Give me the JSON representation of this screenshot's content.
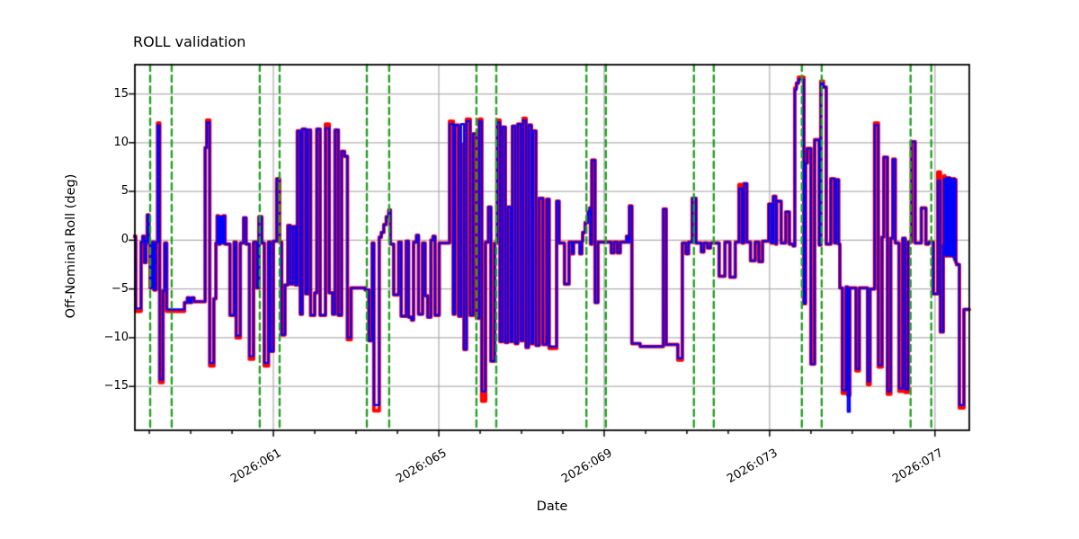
{
  "figure": {
    "title": "ROLL validation",
    "xlabel": "Date",
    "ylabel": "Off-Nominal Roll (deg)"
  },
  "axes": {
    "x_major_ticks": [
      {
        "day": 61,
        "label": "2026:061"
      },
      {
        "day": 65,
        "label": "2026:065"
      },
      {
        "day": 69,
        "label": "2026:069"
      },
      {
        "day": 73,
        "label": "2026:073"
      },
      {
        "day": 77,
        "label": "2026:077"
      }
    ],
    "x_minor_days": [
      58,
      59,
      60,
      62,
      63,
      64,
      66,
      67,
      68,
      70,
      71,
      72,
      74,
      75,
      76
    ],
    "y_ticks": [
      {
        "v": 15,
        "label": "15"
      },
      {
        "v": 10,
        "label": "10"
      },
      {
        "v": 5,
        "label": "5"
      },
      {
        "v": 0,
        "label": "0"
      },
      {
        "v": -5,
        "label": "−5"
      },
      {
        "v": -10,
        "label": "−10"
      },
      {
        "v": -15,
        "label": "−15"
      }
    ],
    "grid": true,
    "grid_color": "#b0b0b0",
    "spine_color": "#000000",
    "background": "#ffffff"
  },
  "chart_data": {
    "type": "line",
    "title": "ROLL validation",
    "xlabel": "Date",
    "ylabel": "Off-Nominal Roll (deg)",
    "x_unit": "day-of-year 2026 (decimal)",
    "xlim": [
      57.65,
      77.83
    ],
    "ylim": [
      -19.5,
      18.0
    ],
    "legend": "none",
    "series": [
      {
        "name": "reference-roll-red",
        "color": "#ff0000",
        "draw": "under",
        "values_column": "red"
      },
      {
        "name": "validated-roll-blue",
        "color": "#0000ff",
        "draw": "over",
        "values_column": "blue"
      }
    ],
    "step_mode": "post",
    "steps_comment": "rows = [day, blue_value_deg, red_value_deg(optional, defaults to blue)]",
    "steps": [
      [
        57.63,
        0.4
      ],
      [
        57.67,
        -7.0,
        -7.3
      ],
      [
        57.8,
        -0.2
      ],
      [
        57.84,
        0.4
      ],
      [
        57.88,
        -2.3
      ],
      [
        57.92,
        -0.1
      ],
      [
        57.95,
        2.6
      ],
      [
        57.99,
        -0.3
      ],
      [
        58.02,
        -4.9
      ],
      [
        58.07,
        -0.2
      ],
      [
        58.11,
        -5.1
      ],
      [
        58.16,
        -0.2
      ],
      [
        58.2,
        11.8,
        12.0
      ],
      [
        58.25,
        -14.3,
        -14.6
      ],
      [
        58.33,
        -5.2
      ],
      [
        58.37,
        -0.3
      ],
      [
        58.42,
        -7.1,
        -7.3
      ],
      [
        58.85,
        -6.4
      ],
      [
        58.92,
        -5.9
      ],
      [
        58.97,
        -6.4
      ],
      [
        59.02,
        -5.9
      ],
      [
        59.08,
        -6.3
      ],
      [
        59.35,
        9.5
      ],
      [
        59.39,
        12.1,
        12.3
      ],
      [
        59.46,
        -12.6,
        -12.9
      ],
      [
        59.56,
        -6.0
      ],
      [
        59.61,
        -0.3
      ],
      [
        59.64,
        2.5
      ],
      [
        59.67,
        -0.4
      ],
      [
        59.71,
        2.4
      ],
      [
        59.75,
        -0.3
      ],
      [
        59.79,
        2.5
      ],
      [
        59.83,
        -0.4
      ],
      [
        59.95,
        -7.7
      ],
      [
        60.05,
        -0.2
      ],
      [
        60.1,
        -9.8,
        -10.0
      ],
      [
        60.2,
        -0.3
      ],
      [
        60.28,
        2.3
      ],
      [
        60.34,
        -0.4
      ],
      [
        60.42,
        -11.9,
        -12.2
      ],
      [
        60.52,
        -0.2
      ],
      [
        60.6,
        -4.9
      ],
      [
        60.65,
        2.4
      ],
      [
        60.72,
        -0.3
      ],
      [
        60.78,
        -12.6,
        -12.9
      ],
      [
        60.88,
        -0.2
      ],
      [
        60.93,
        -11.4
      ],
      [
        61.0,
        -0.1
      ],
      [
        61.08,
        6.3
      ],
      [
        61.15,
        -0.2
      ],
      [
        61.2,
        -9.7
      ],
      [
        61.28,
        -4.6
      ],
      [
        61.35,
        1.5
      ],
      [
        61.41,
        -4.5
      ],
      [
        61.47,
        1.4
      ],
      [
        61.53,
        -4.6
      ],
      [
        61.58,
        11.2
      ],
      [
        61.65,
        -7.6
      ],
      [
        61.7,
        11.4
      ],
      [
        61.78,
        -5.5
      ],
      [
        61.83,
        11.3
      ],
      [
        61.9,
        -7.7
      ],
      [
        62.0,
        -5.4
      ],
      [
        62.05,
        11.4
      ],
      [
        62.13,
        -7.7
      ],
      [
        62.26,
        11.5,
        11.9
      ],
      [
        62.35,
        -5.4
      ],
      [
        62.43,
        -7.6
      ],
      [
        62.49,
        11.3
      ],
      [
        62.57,
        -7.7
      ],
      [
        62.65,
        9.1
      ],
      [
        62.72,
        8.6
      ],
      [
        62.79,
        -10.0,
        -10.2
      ],
      [
        62.88,
        -4.9
      ],
      [
        63.22,
        -5.1
      ],
      [
        63.31,
        -10.3
      ],
      [
        63.39,
        -0.3
      ],
      [
        63.43,
        -16.9,
        -17.5
      ],
      [
        63.56,
        0.3
      ],
      [
        63.61,
        0.8
      ],
      [
        63.67,
        1.6
      ],
      [
        63.73,
        2.4
      ],
      [
        63.79,
        3.1
      ],
      [
        63.83,
        -0.4
      ],
      [
        63.91,
        -5.6
      ],
      [
        64.03,
        -0.2
      ],
      [
        64.09,
        -7.8
      ],
      [
        64.21,
        -0.1
      ],
      [
        64.27,
        -7.9
      ],
      [
        64.34,
        -8.2
      ],
      [
        64.39,
        -0.2
      ],
      [
        64.46,
        0.5
      ],
      [
        64.51,
        -7.6
      ],
      [
        64.61,
        -0.3
      ],
      [
        64.67,
        -5.7
      ],
      [
        64.73,
        -7.9
      ],
      [
        64.81,
        0.0
      ],
      [
        64.86,
        0.4
      ],
      [
        64.91,
        -7.7
      ],
      [
        65.01,
        -0.3
      ],
      [
        65.26,
        11.9,
        12.2
      ],
      [
        65.35,
        -7.6
      ],
      [
        65.39,
        11.8
      ],
      [
        65.48,
        -7.8
      ],
      [
        65.54,
        11.9,
        9.8
      ],
      [
        65.61,
        -11.2
      ],
      [
        65.67,
        12.2,
        12.4
      ],
      [
        65.76,
        -7.7
      ],
      [
        65.83,
        10.9
      ],
      [
        65.91,
        -8.0
      ],
      [
        65.98,
        12.2,
        12.4
      ],
      [
        66.04,
        -15.5,
        -16.5
      ],
      [
        66.13,
        -0.2
      ],
      [
        66.2,
        3.4
      ],
      [
        66.26,
        -12.4
      ],
      [
        66.35,
        -0.3
      ],
      [
        66.41,
        12.1,
        12.3
      ],
      [
        66.48,
        -10.4
      ],
      [
        66.54,
        11.6
      ],
      [
        66.61,
        -10.5
      ],
      [
        66.67,
        3.4
      ],
      [
        66.74,
        -10.4
      ],
      [
        66.78,
        11.7
      ],
      [
        66.85,
        -10.6
      ],
      [
        66.91,
        11.9
      ],
      [
        66.98,
        -10.3
      ],
      [
        67.04,
        12.3,
        12.5
      ],
      [
        67.11,
        -11.0
      ],
      [
        67.17,
        11.8
      ],
      [
        67.24,
        -10.6
      ],
      [
        67.28,
        11.2
      ],
      [
        67.35,
        -10.8
      ],
      [
        67.43,
        4.3
      ],
      [
        67.52,
        -10.7
      ],
      [
        67.61,
        4.2
      ],
      [
        67.67,
        -10.9,
        -11.1
      ],
      [
        67.85,
        4.0
      ],
      [
        67.91,
        -0.3
      ],
      [
        68.04,
        -4.5
      ],
      [
        68.15,
        -0.2
      ],
      [
        68.22,
        -1.4
      ],
      [
        68.26,
        -0.2
      ],
      [
        68.41,
        -1.4
      ],
      [
        68.46,
        -0.1
      ],
      [
        68.48,
        0.8
      ],
      [
        68.54,
        1.8
      ],
      [
        68.61,
        2.9
      ],
      [
        68.65,
        3.3
      ],
      [
        68.67,
        -0.4
      ],
      [
        68.7,
        8.2
      ],
      [
        68.78,
        -6.4
      ],
      [
        68.85,
        -0.2
      ],
      [
        69.17,
        -1.3
      ],
      [
        69.24,
        -0.2
      ],
      [
        69.32,
        -1.3
      ],
      [
        69.39,
        -0.2
      ],
      [
        69.54,
        0.4
      ],
      [
        69.58,
        -0.2
      ],
      [
        69.61,
        3.5
      ],
      [
        69.67,
        -10.6
      ],
      [
        69.87,
        -10.9
      ],
      [
        70.43,
        3.2
      ],
      [
        70.5,
        -10.7
      ],
      [
        70.78,
        -12.1,
        -12.3
      ],
      [
        70.89,
        -0.3
      ],
      [
        70.98,
        -1.4
      ],
      [
        71.04,
        -0.2
      ],
      [
        71.13,
        4.3
      ],
      [
        71.22,
        -0.3
      ],
      [
        71.35,
        -1.2
      ],
      [
        71.41,
        -0.3
      ],
      [
        71.5,
        -0.8
      ],
      [
        71.57,
        -0.3
      ],
      [
        71.78,
        -3.7
      ],
      [
        71.92,
        -0.2
      ],
      [
        72.04,
        -3.8
      ],
      [
        72.17,
        -0.2
      ],
      [
        72.26,
        5.3,
        5.7
      ],
      [
        72.33,
        -0.3
      ],
      [
        72.38,
        5.8
      ],
      [
        72.45,
        -0.2
      ],
      [
        72.54,
        -2.1
      ],
      [
        72.65,
        -0.2
      ],
      [
        72.74,
        -2.2
      ],
      [
        72.83,
        -0.1
      ],
      [
        72.98,
        3.7
      ],
      [
        73.04,
        -0.3
      ],
      [
        73.09,
        4.5
      ],
      [
        73.15,
        -0.4
      ],
      [
        73.17,
        4.0
      ],
      [
        73.28,
        -0.3
      ],
      [
        73.39,
        2.9
      ],
      [
        73.48,
        -0.4
      ],
      [
        73.57,
        -0.6
      ],
      [
        73.61,
        15.4,
        15.6
      ],
      [
        73.65,
        16.1
      ],
      [
        73.7,
        16.5,
        16.7
      ],
      [
        73.83,
        -6.5
      ],
      [
        73.87,
        7.9
      ],
      [
        73.91,
        9.4
      ],
      [
        74.0,
        -12.7
      ],
      [
        74.09,
        10.3
      ],
      [
        74.2,
        -0.5
      ],
      [
        74.24,
        16.1,
        16.3
      ],
      [
        74.3,
        15.7
      ],
      [
        74.37,
        -0.4
      ],
      [
        74.48,
        6.3
      ],
      [
        74.57,
        -0.3
      ],
      [
        74.61,
        6.2
      ],
      [
        74.67,
        -0.4
      ],
      [
        74.7,
        -4.9
      ],
      [
        74.76,
        -15.4,
        -15.7
      ],
      [
        74.85,
        -4.8
      ],
      [
        74.89,
        -17.6,
        -15.9
      ],
      [
        74.94,
        -4.9
      ],
      [
        75.09,
        -13.2,
        -13.4
      ],
      [
        75.17,
        -4.9
      ],
      [
        75.37,
        -14.5,
        -14.8
      ],
      [
        75.43,
        -5.0
      ],
      [
        75.54,
        11.8,
        12.0
      ],
      [
        75.63,
        -12.8,
        -13.0
      ],
      [
        75.72,
        0.3
      ],
      [
        75.76,
        8.5
      ],
      [
        75.85,
        -15.5,
        -15.8
      ],
      [
        75.93,
        0.2
      ],
      [
        75.98,
        8.3
      ],
      [
        76.04,
        -0.3
      ],
      [
        76.13,
        -15.2,
        -15.5
      ],
      [
        76.22,
        0.2
      ],
      [
        76.28,
        -15.3,
        -15.6
      ],
      [
        76.35,
        -0.2
      ],
      [
        76.43,
        10.1
      ],
      [
        76.52,
        -0.3
      ],
      [
        76.67,
        3.3
      ],
      [
        76.78,
        -0.4
      ],
      [
        76.85,
        -0.2
      ],
      [
        76.96,
        -5.5
      ],
      [
        77.07,
        6.1,
        7.0
      ],
      [
        77.13,
        -9.4
      ],
      [
        77.2,
        -0.5
      ],
      [
        77.22,
        6.3,
        6.6
      ],
      [
        77.235,
        -1.5
      ],
      [
        77.25,
        6.3
      ],
      [
        77.265,
        -1.6
      ],
      [
        77.28,
        6.4
      ],
      [
        77.295,
        -1.4
      ],
      [
        77.31,
        6.3
      ],
      [
        77.325,
        -1.6
      ],
      [
        77.34,
        6.4
      ],
      [
        77.355,
        -1.5
      ],
      [
        77.37,
        6.3
      ],
      [
        77.385,
        -1.6
      ],
      [
        77.4,
        6.3
      ],
      [
        77.415,
        -1.5
      ],
      [
        77.43,
        6.2
      ],
      [
        77.445,
        -1.7
      ],
      [
        77.46,
        6.3
      ],
      [
        77.475,
        -2.0
      ],
      [
        77.49,
        6.2
      ],
      [
        77.505,
        -2.3
      ],
      [
        77.52,
        -2.5
      ],
      [
        77.59,
        -16.9,
        -17.2
      ],
      [
        77.7,
        -7.1
      ],
      [
        77.8,
        -7.1
      ]
    ],
    "event_lines": {
      "name": "green-dashed-event-markers",
      "color": "#24a024",
      "style": "dashed",
      "orientation": "vertical",
      "days": [
        58.02,
        58.54,
        60.67,
        61.15,
        63.26,
        63.8,
        65.91,
        66.39,
        68.57,
        69.04,
        71.17,
        71.65,
        73.78,
        74.26,
        76.41,
        76.91
      ]
    }
  }
}
